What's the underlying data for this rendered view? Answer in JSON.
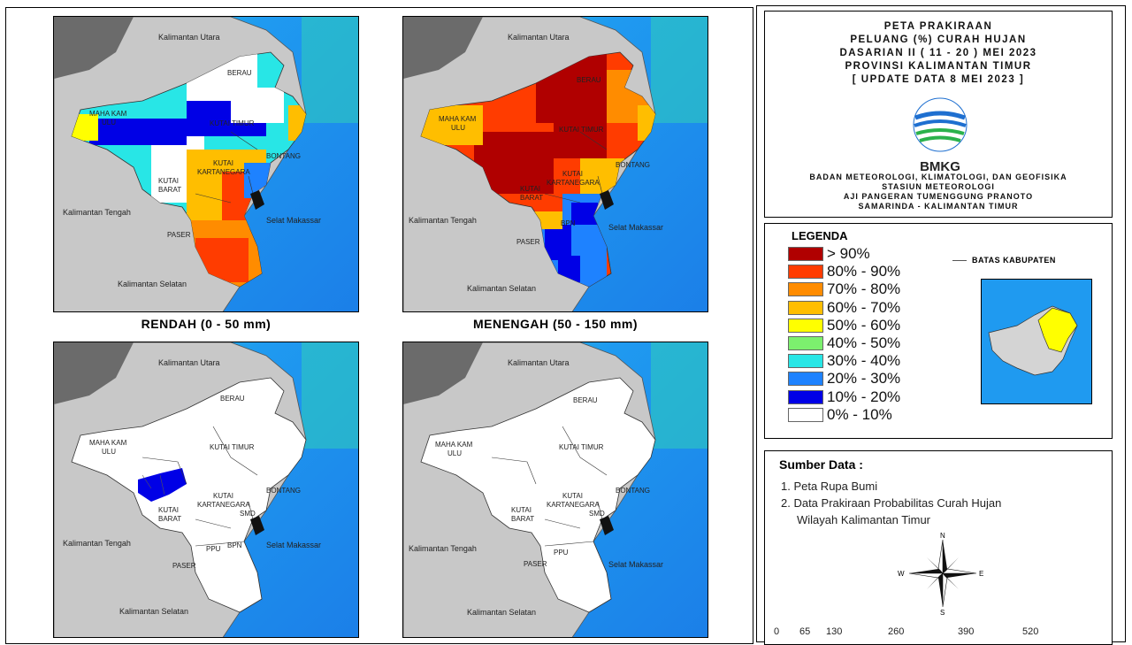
{
  "maps": [
    {
      "caption": "RENDAH (0 - 50 mm)",
      "variant": "rendah"
    },
    {
      "caption": "MENENGAH (50 - 150 mm)",
      "variant": "menengah"
    },
    {
      "caption": "",
      "variant": "tinggi"
    },
    {
      "caption": "",
      "variant": "sangat-tinggi"
    }
  ],
  "map_labels": {
    "kaltara": "Kalimantan Utara",
    "kalteng": "Kalimantan Tengah",
    "kalsel": "Kalimantan Selatan",
    "selat": "Selat Makassar",
    "berau": "BERAU",
    "mahakam1": "MAHA KAM",
    "mahakam2": "ULU",
    "kutim": "KUTAI TIMUR",
    "kubar1": "KUTAI",
    "kubar2": "BARAT",
    "kukar1": "KUTAI",
    "kukar2": "KARTANEGARA",
    "bontang": "BONTANG",
    "paser": "PASER",
    "ppu": "PPU",
    "bpn": "BPN",
    "smd": "SMD"
  },
  "title": {
    "line1": "PETA PRAKIRAAN",
    "line2": "PELUANG (%) CURAH HUJAN",
    "line3": "DASARIAN II ( 11 - 20 ) MEI 2023",
    "line4": "PROVINSI KALIMANTAN TIMUR",
    "line5": "[ UPDATE DATA 8 MEI 2023 ]"
  },
  "logo_text": "BMKG",
  "institution": {
    "line1": "BADAN METEOROLOGI, KLIMATOLOGI, DAN GEOFISIKA",
    "line2": "STASIUN METEOROLOGI",
    "line3": "AJI PANGERAN TUMENGGUNG PRANOTO",
    "line4": "SAMARINDA - KALIMANTAN TIMUR"
  },
  "legend": {
    "title": "LEGENDA",
    "boundary_label": "BATAS KABUPATEN",
    "items": [
      {
        "label": "> 90%",
        "color": "#b00000"
      },
      {
        "label": "80% - 90%",
        "color": "#ff3c00"
      },
      {
        "label": "70% - 80%",
        "color": "#ff8c00"
      },
      {
        "label": "60% - 70%",
        "color": "#ffbe00"
      },
      {
        "label": "50% - 60%",
        "color": "#ffff00"
      },
      {
        "label": "40% - 50%",
        "color": "#7cf06e"
      },
      {
        "label": "30% - 40%",
        "color": "#28e6e6"
      },
      {
        "label": "20% - 30%",
        "color": "#1e82ff"
      },
      {
        "label": "10% - 20%",
        "color": "#0000e6"
      },
      {
        "label": "0% - 10%",
        "color": "#ffffff"
      }
    ]
  },
  "sources": {
    "title": "Sumber Data :",
    "item1": "1. Peta Rupa Bumi",
    "item2a": "2. Data Prakiraan Probabilitas Curah Hujan",
    "item2b": "Wilayah Kalimantan Timur"
  },
  "compass": {
    "n": "N",
    "s": "S",
    "e": "E",
    "w": "W"
  },
  "scale": [
    "0",
    "65",
    "130",
    "260",
    "390",
    "520"
  ]
}
